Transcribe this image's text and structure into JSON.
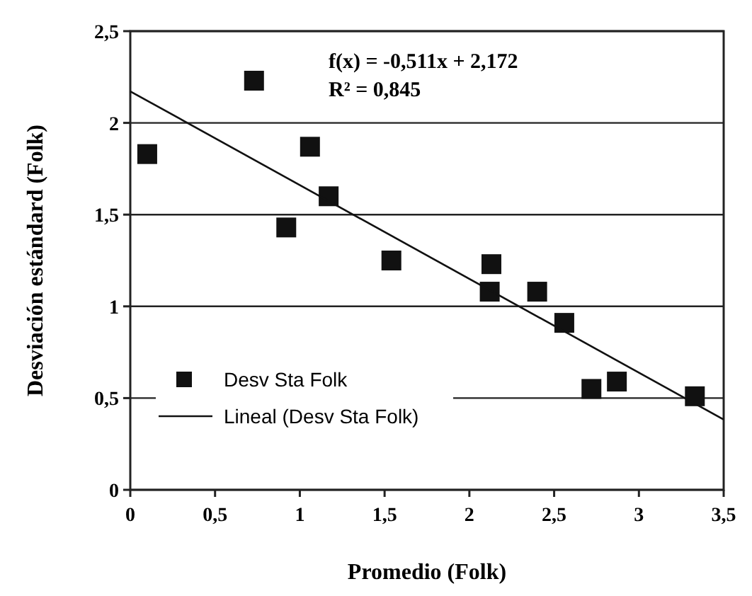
{
  "chart_data": {
    "type": "scatter",
    "xlabel": "Promedio  (Folk)",
    "ylabel": "Desviación estándard  (Folk)",
    "xlim": [
      0,
      3.5
    ],
    "xticks": [
      0,
      {
        "value": 0.5,
        "label": "0,5"
      },
      1,
      {
        "value": 1.5,
        "label": "1,5"
      },
      2,
      {
        "value": 2.5,
        "label": "2,5"
      },
      3,
      {
        "value": 3.5,
        "label": "3,5"
      }
    ],
    "ylim": [
      0,
      2.5
    ],
    "yticks": [
      0,
      {
        "value": 0.5,
        "label": "0,5"
      },
      1,
      {
        "value": 1.5,
        "label": "1,5"
      },
      2,
      {
        "value": 2.5,
        "label": "2,5"
      }
    ],
    "grid": "y",
    "legend": "bottom left",
    "marker": "square",
    "annotations": [
      "f(x) = -0,511x + 2,172",
      "R² = 0,845"
    ],
    "series": [
      {
        "name": "Desv Sta Folk",
        "color": "#111111",
        "x": [
          0.1,
          0.73,
          1.06,
          1.17,
          0.92,
          1.54,
          2.13,
          2.12,
          2.4,
          2.56,
          2.72,
          2.87,
          3.33
        ],
        "values": [
          1.83,
          2.23,
          1.87,
          1.6,
          1.43,
          1.25,
          1.23,
          1.08,
          1.08,
          0.91,
          0.55,
          0.59,
          0.51
        ]
      },
      {
        "name": "Lineal (Desv Sta Folk)",
        "type": "line",
        "color": "#111111",
        "line_style": "solid",
        "marker": "none",
        "x": [
          0,
          3.5
        ],
        "values": [
          2.172,
          0.383
        ]
      }
    ]
  }
}
